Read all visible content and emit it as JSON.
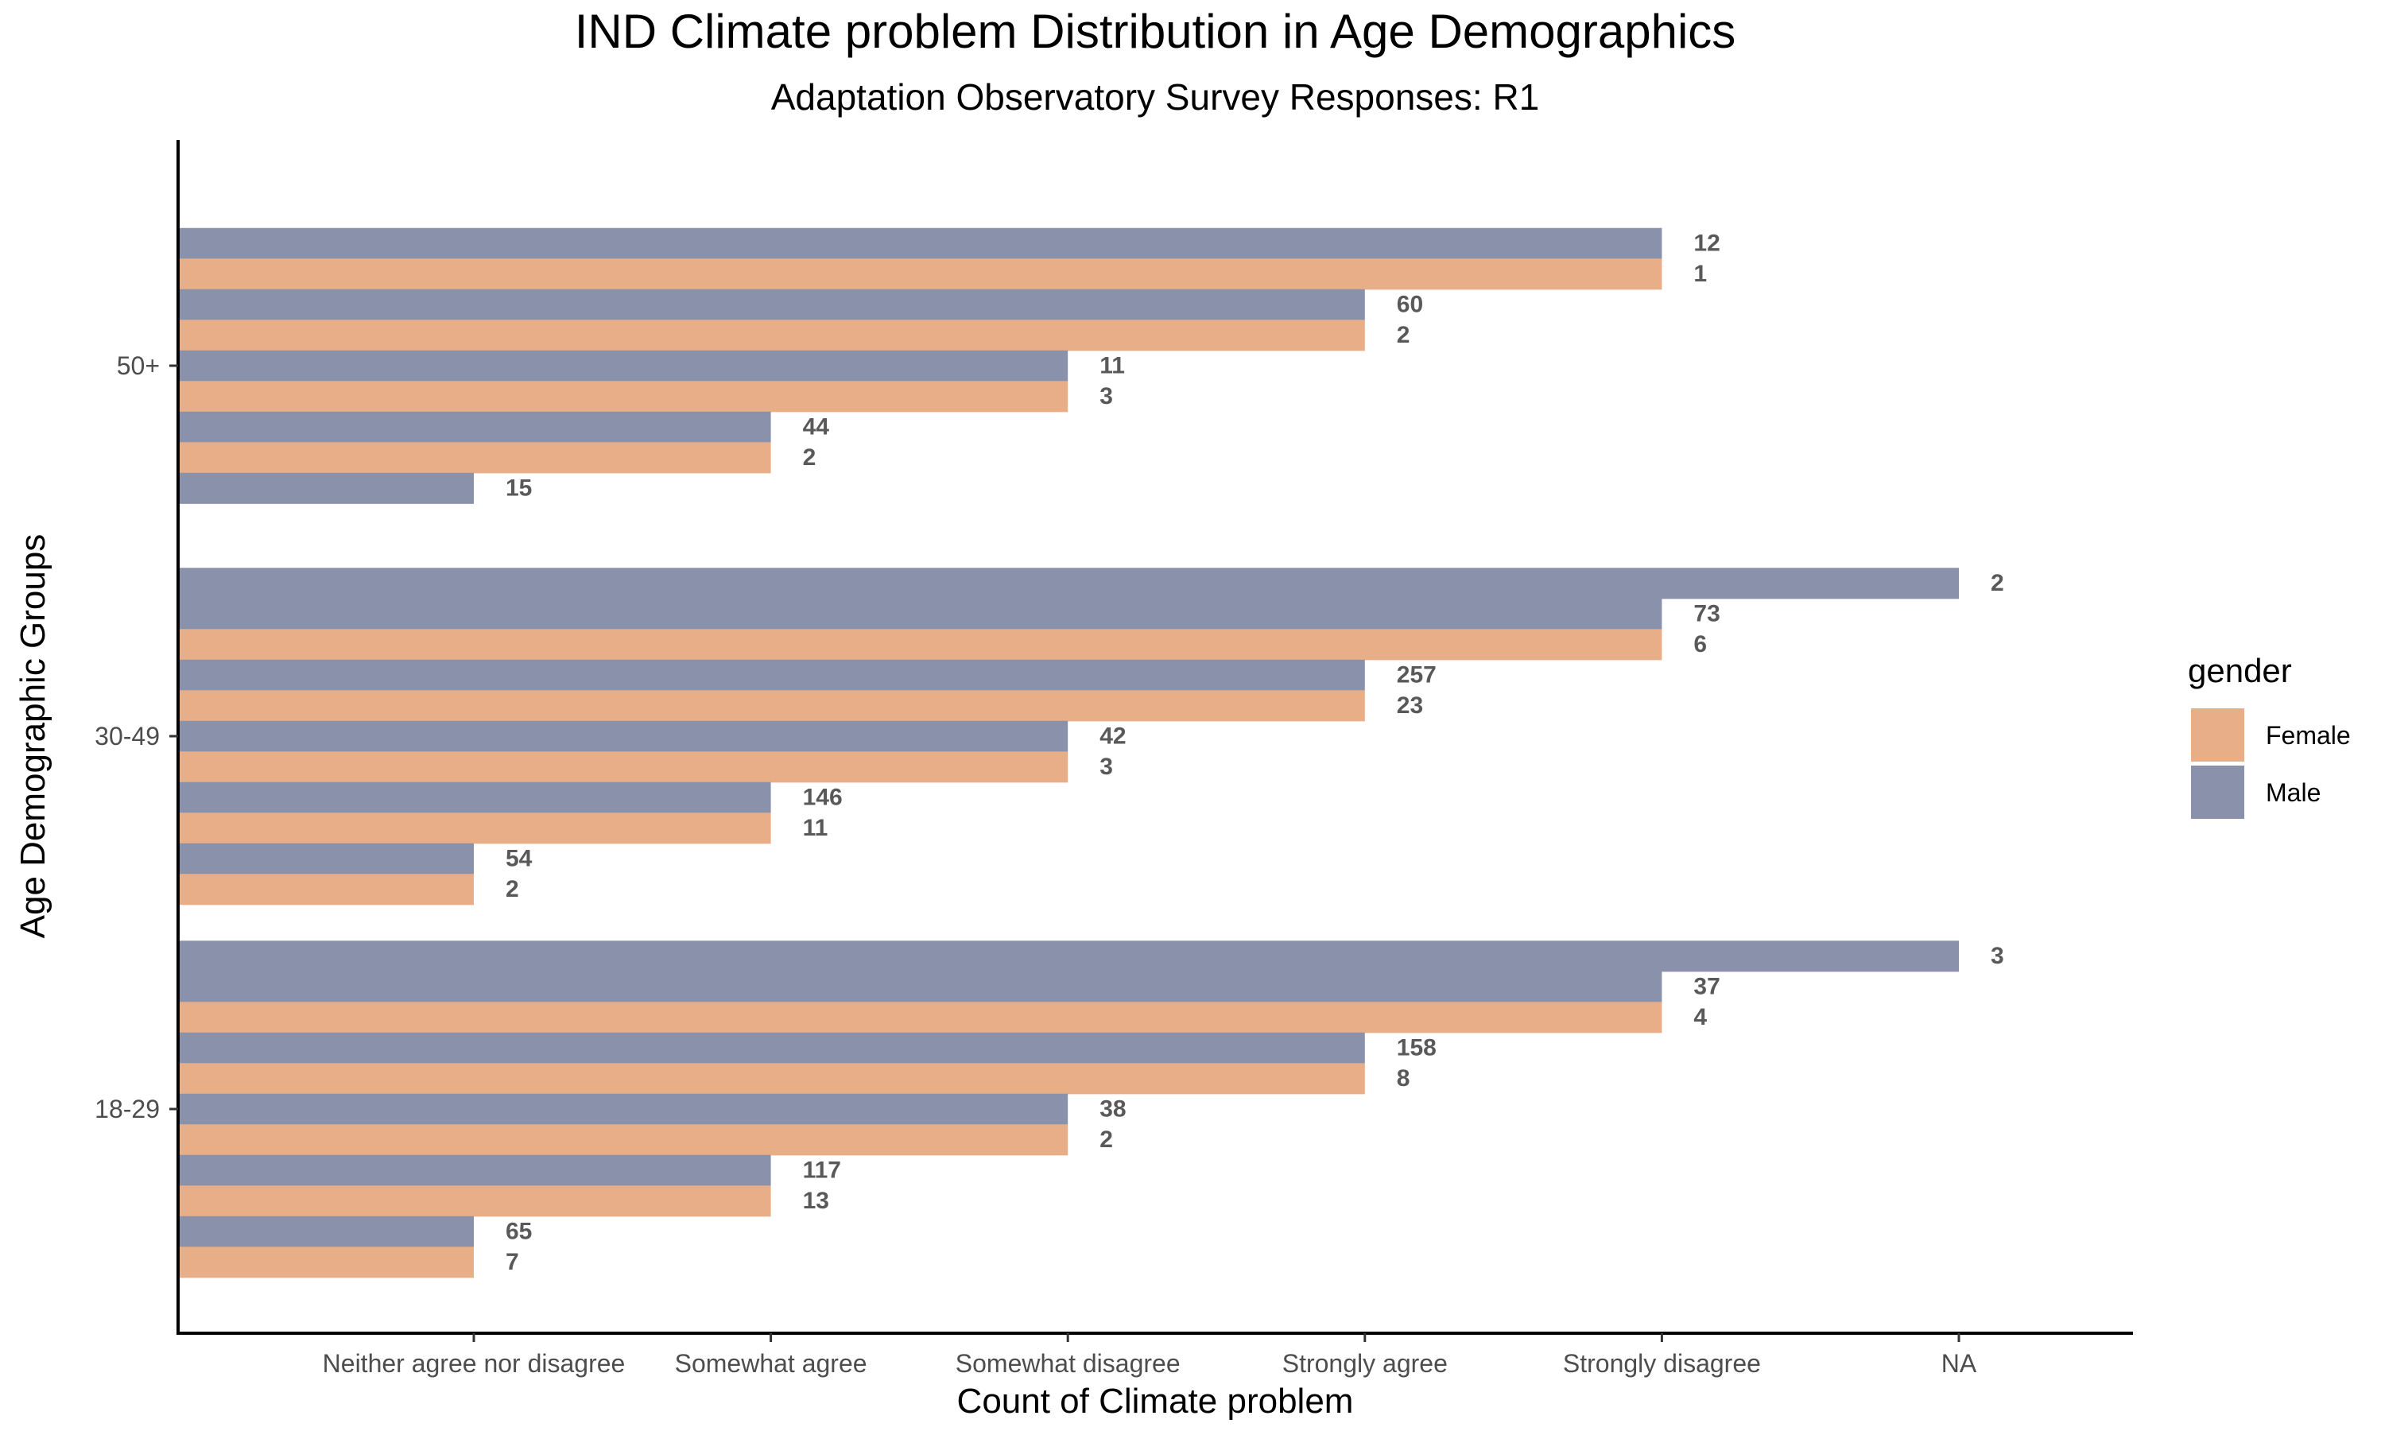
{
  "chart_data": {
    "type": "bar",
    "orientation": "horizontal",
    "title": "IND Climate problem Distribution in Age Demographics",
    "subtitle": "Adaptation Observatory Survey Responses: R1",
    "xlabel": "Count of Climate problem",
    "ylabel": "Age Demographic Groups",
    "x_categories": [
      "Neither agree nor disagree",
      "Somewhat agree",
      "Somewhat disagree",
      "Strongly agree",
      "Strongly disagree",
      "NA"
    ],
    "age_groups": [
      "18-29",
      "30-49",
      "50+"
    ],
    "grid": false,
    "legend": {
      "title": "gender",
      "position": "right",
      "entries": [
        {
          "name": "Female",
          "color": "#E8AE88"
        },
        {
          "name": "Male",
          "color": "#8A91AB"
        }
      ]
    },
    "groups": [
      {
        "age": "50+",
        "bars": [
          {
            "response": "Strongly disagree",
            "gender": "Male",
            "label": "12"
          },
          {
            "response": "Strongly disagree",
            "gender": "Female",
            "label": "1"
          },
          {
            "response": "Strongly agree",
            "gender": "Male",
            "label": "60"
          },
          {
            "response": "Strongly agree",
            "gender": "Female",
            "label": "2"
          },
          {
            "response": "Somewhat disagree",
            "gender": "Male",
            "label": "11"
          },
          {
            "response": "Somewhat disagree",
            "gender": "Female",
            "label": "3"
          },
          {
            "response": "Somewhat agree",
            "gender": "Male",
            "label": "44"
          },
          {
            "response": "Somewhat agree",
            "gender": "Female",
            "label": "2"
          },
          {
            "response": "Neither agree nor disagree",
            "gender": "Male",
            "label": "15"
          }
        ]
      },
      {
        "age": "30-49",
        "bars": [
          {
            "response": "NA",
            "gender": "Male",
            "label": "2"
          },
          {
            "response": "Strongly disagree",
            "gender": "Male",
            "label": "73"
          },
          {
            "response": "Strongly disagree",
            "gender": "Female",
            "label": "6"
          },
          {
            "response": "Strongly agree",
            "gender": "Male",
            "label": "257"
          },
          {
            "response": "Strongly agree",
            "gender": "Female",
            "label": "23"
          },
          {
            "response": "Somewhat disagree",
            "gender": "Male",
            "label": "42"
          },
          {
            "response": "Somewhat disagree",
            "gender": "Female",
            "label": "3"
          },
          {
            "response": "Somewhat agree",
            "gender": "Male",
            "label": "146"
          },
          {
            "response": "Somewhat agree",
            "gender": "Female",
            "label": "11"
          },
          {
            "response": "Neither agree nor disagree",
            "gender": "Male",
            "label": "54"
          },
          {
            "response": "Neither agree nor disagree",
            "gender": "Female",
            "label": "2"
          }
        ]
      },
      {
        "age": "18-29",
        "bars": [
          {
            "response": "NA",
            "gender": "Male",
            "label": "3"
          },
          {
            "response": "Strongly disagree",
            "gender": "Male",
            "label": "37"
          },
          {
            "response": "Strongly disagree",
            "gender": "Female",
            "label": "4"
          },
          {
            "response": "Strongly agree",
            "gender": "Male",
            "label": "158"
          },
          {
            "response": "Strongly agree",
            "gender": "Female",
            "label": "8"
          },
          {
            "response": "Somewhat disagree",
            "gender": "Male",
            "label": "38"
          },
          {
            "response": "Somewhat disagree",
            "gender": "Female",
            "label": "2"
          },
          {
            "response": "Somewhat agree",
            "gender": "Male",
            "label": "117"
          },
          {
            "response": "Somewhat agree",
            "gender": "Female",
            "label": "13"
          },
          {
            "response": "Neither agree nor disagree",
            "gender": "Male",
            "label": "65"
          },
          {
            "response": "Neither agree nor disagree",
            "gender": "Female",
            "label": "7"
          }
        ]
      }
    ]
  }
}
